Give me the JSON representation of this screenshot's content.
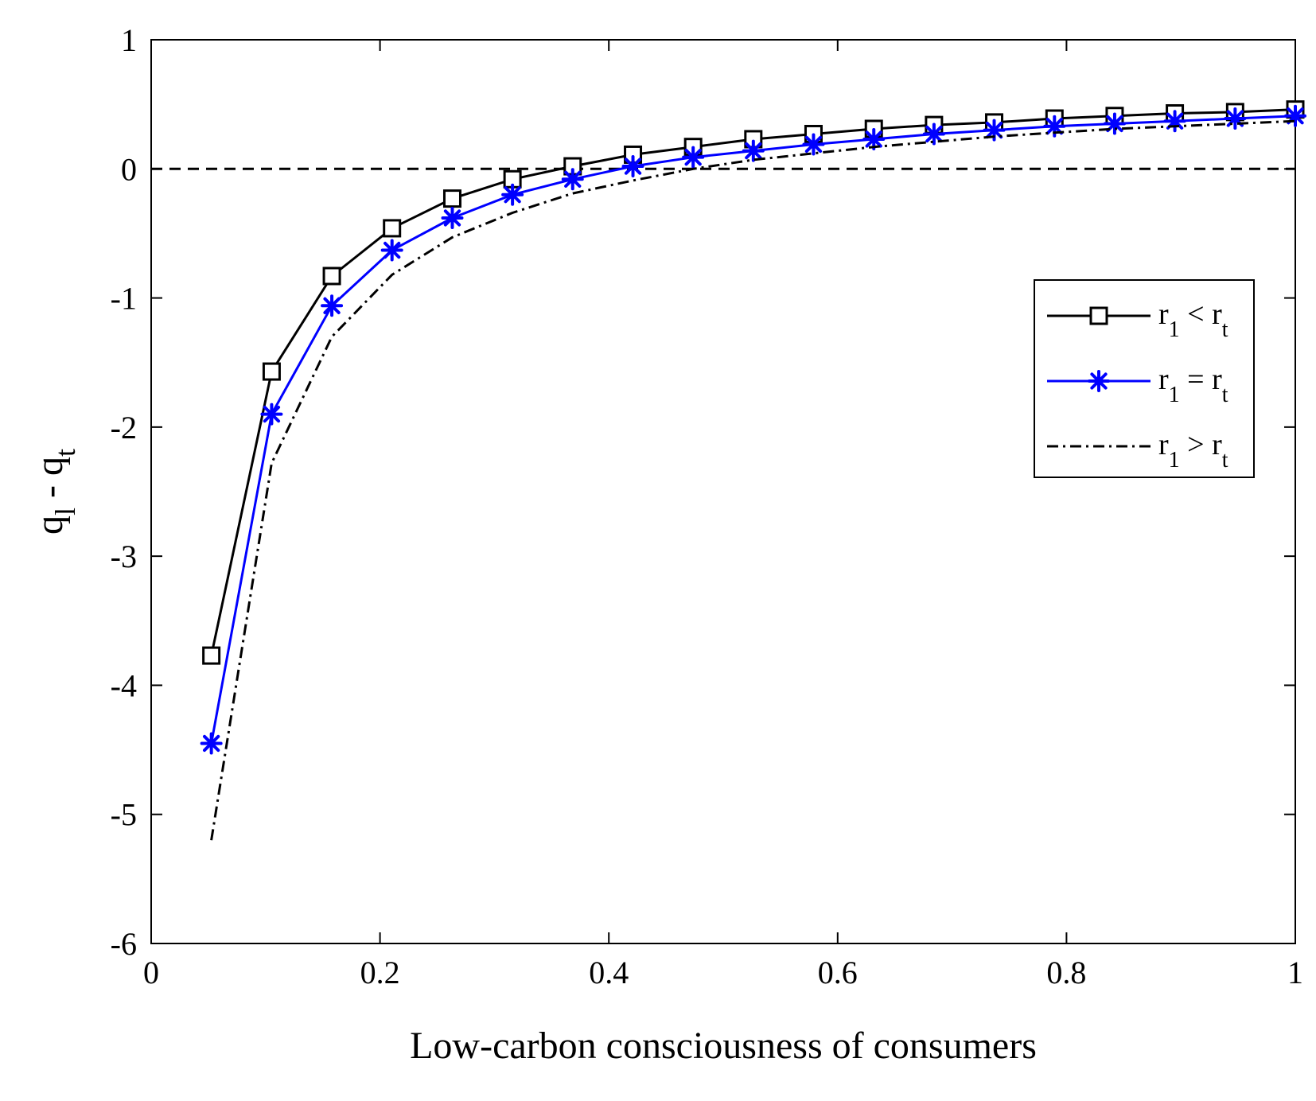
{
  "chart_data": {
    "type": "line",
    "title": "",
    "xlabel": "Low-carbon consciousness of consumers",
    "ylabel": "q_l - q_t",
    "ylabel_parts": {
      "q1": "q",
      "sub1": "l",
      "minus": " - ",
      "q2": "q",
      "sub2": "t"
    },
    "xlim": [
      0,
      1
    ],
    "ylim": [
      -6,
      1
    ],
    "xticks": [
      0,
      0.2,
      0.4,
      0.6,
      0.8,
      1
    ],
    "xtick_labels": [
      "0",
      "0.2",
      "0.4",
      "0.6",
      "0.8",
      "1"
    ],
    "yticks": [
      1,
      0,
      -1,
      -2,
      -3,
      -4,
      -5,
      -6
    ],
    "ytick_labels": [
      "1",
      "0",
      "-1",
      "-2",
      "-3",
      "-4",
      "-5",
      "-6"
    ],
    "grid": false,
    "legend_position": "right",
    "reference_line": {
      "y": 0,
      "style": "dashed",
      "color": "#000000"
    },
    "x": [
      0.0526,
      0.1053,
      0.1579,
      0.2105,
      0.2632,
      0.3158,
      0.3684,
      0.4211,
      0.4737,
      0.5263,
      0.5789,
      0.6316,
      0.6842,
      0.7368,
      0.7895,
      0.8421,
      0.8947,
      0.9474,
      1.0
    ],
    "series": [
      {
        "name": "r1 < rt",
        "legend": {
          "a": "r",
          "a_sub": "1",
          "op": " < ",
          "b": "r",
          "b_sub": "t"
        },
        "color": "#000000",
        "marker": "square",
        "line_style": "solid",
        "values": [
          -3.77,
          -1.57,
          -0.83,
          -0.46,
          -0.23,
          -0.08,
          0.02,
          0.11,
          0.17,
          0.23,
          0.27,
          0.31,
          0.34,
          0.36,
          0.39,
          0.41,
          0.43,
          0.44,
          0.46
        ]
      },
      {
        "name": "r1 = rt",
        "legend": {
          "a": "r",
          "a_sub": "1",
          "op": " = ",
          "b": "r",
          "b_sub": "t"
        },
        "color": "#0000ff",
        "marker": "asterisk",
        "line_style": "solid",
        "values": [
          -4.45,
          -1.9,
          -1.06,
          -0.63,
          -0.38,
          -0.2,
          -0.08,
          0.02,
          0.09,
          0.14,
          0.19,
          0.23,
          0.27,
          0.3,
          0.33,
          0.35,
          0.37,
          0.39,
          0.41
        ]
      },
      {
        "name": "r1 > rt",
        "legend": {
          "a": "r",
          "a_sub": "1",
          "op": " > ",
          "b": "r",
          "b_sub": "t"
        },
        "color": "#000000",
        "marker": "none",
        "line_style": "dash-dot",
        "values": [
          -5.2,
          -2.28,
          -1.3,
          -0.82,
          -0.53,
          -0.34,
          -0.19,
          -0.09,
          0.0,
          0.07,
          0.12,
          0.17,
          0.21,
          0.25,
          0.28,
          0.31,
          0.33,
          0.35,
          0.37
        ]
      }
    ]
  }
}
